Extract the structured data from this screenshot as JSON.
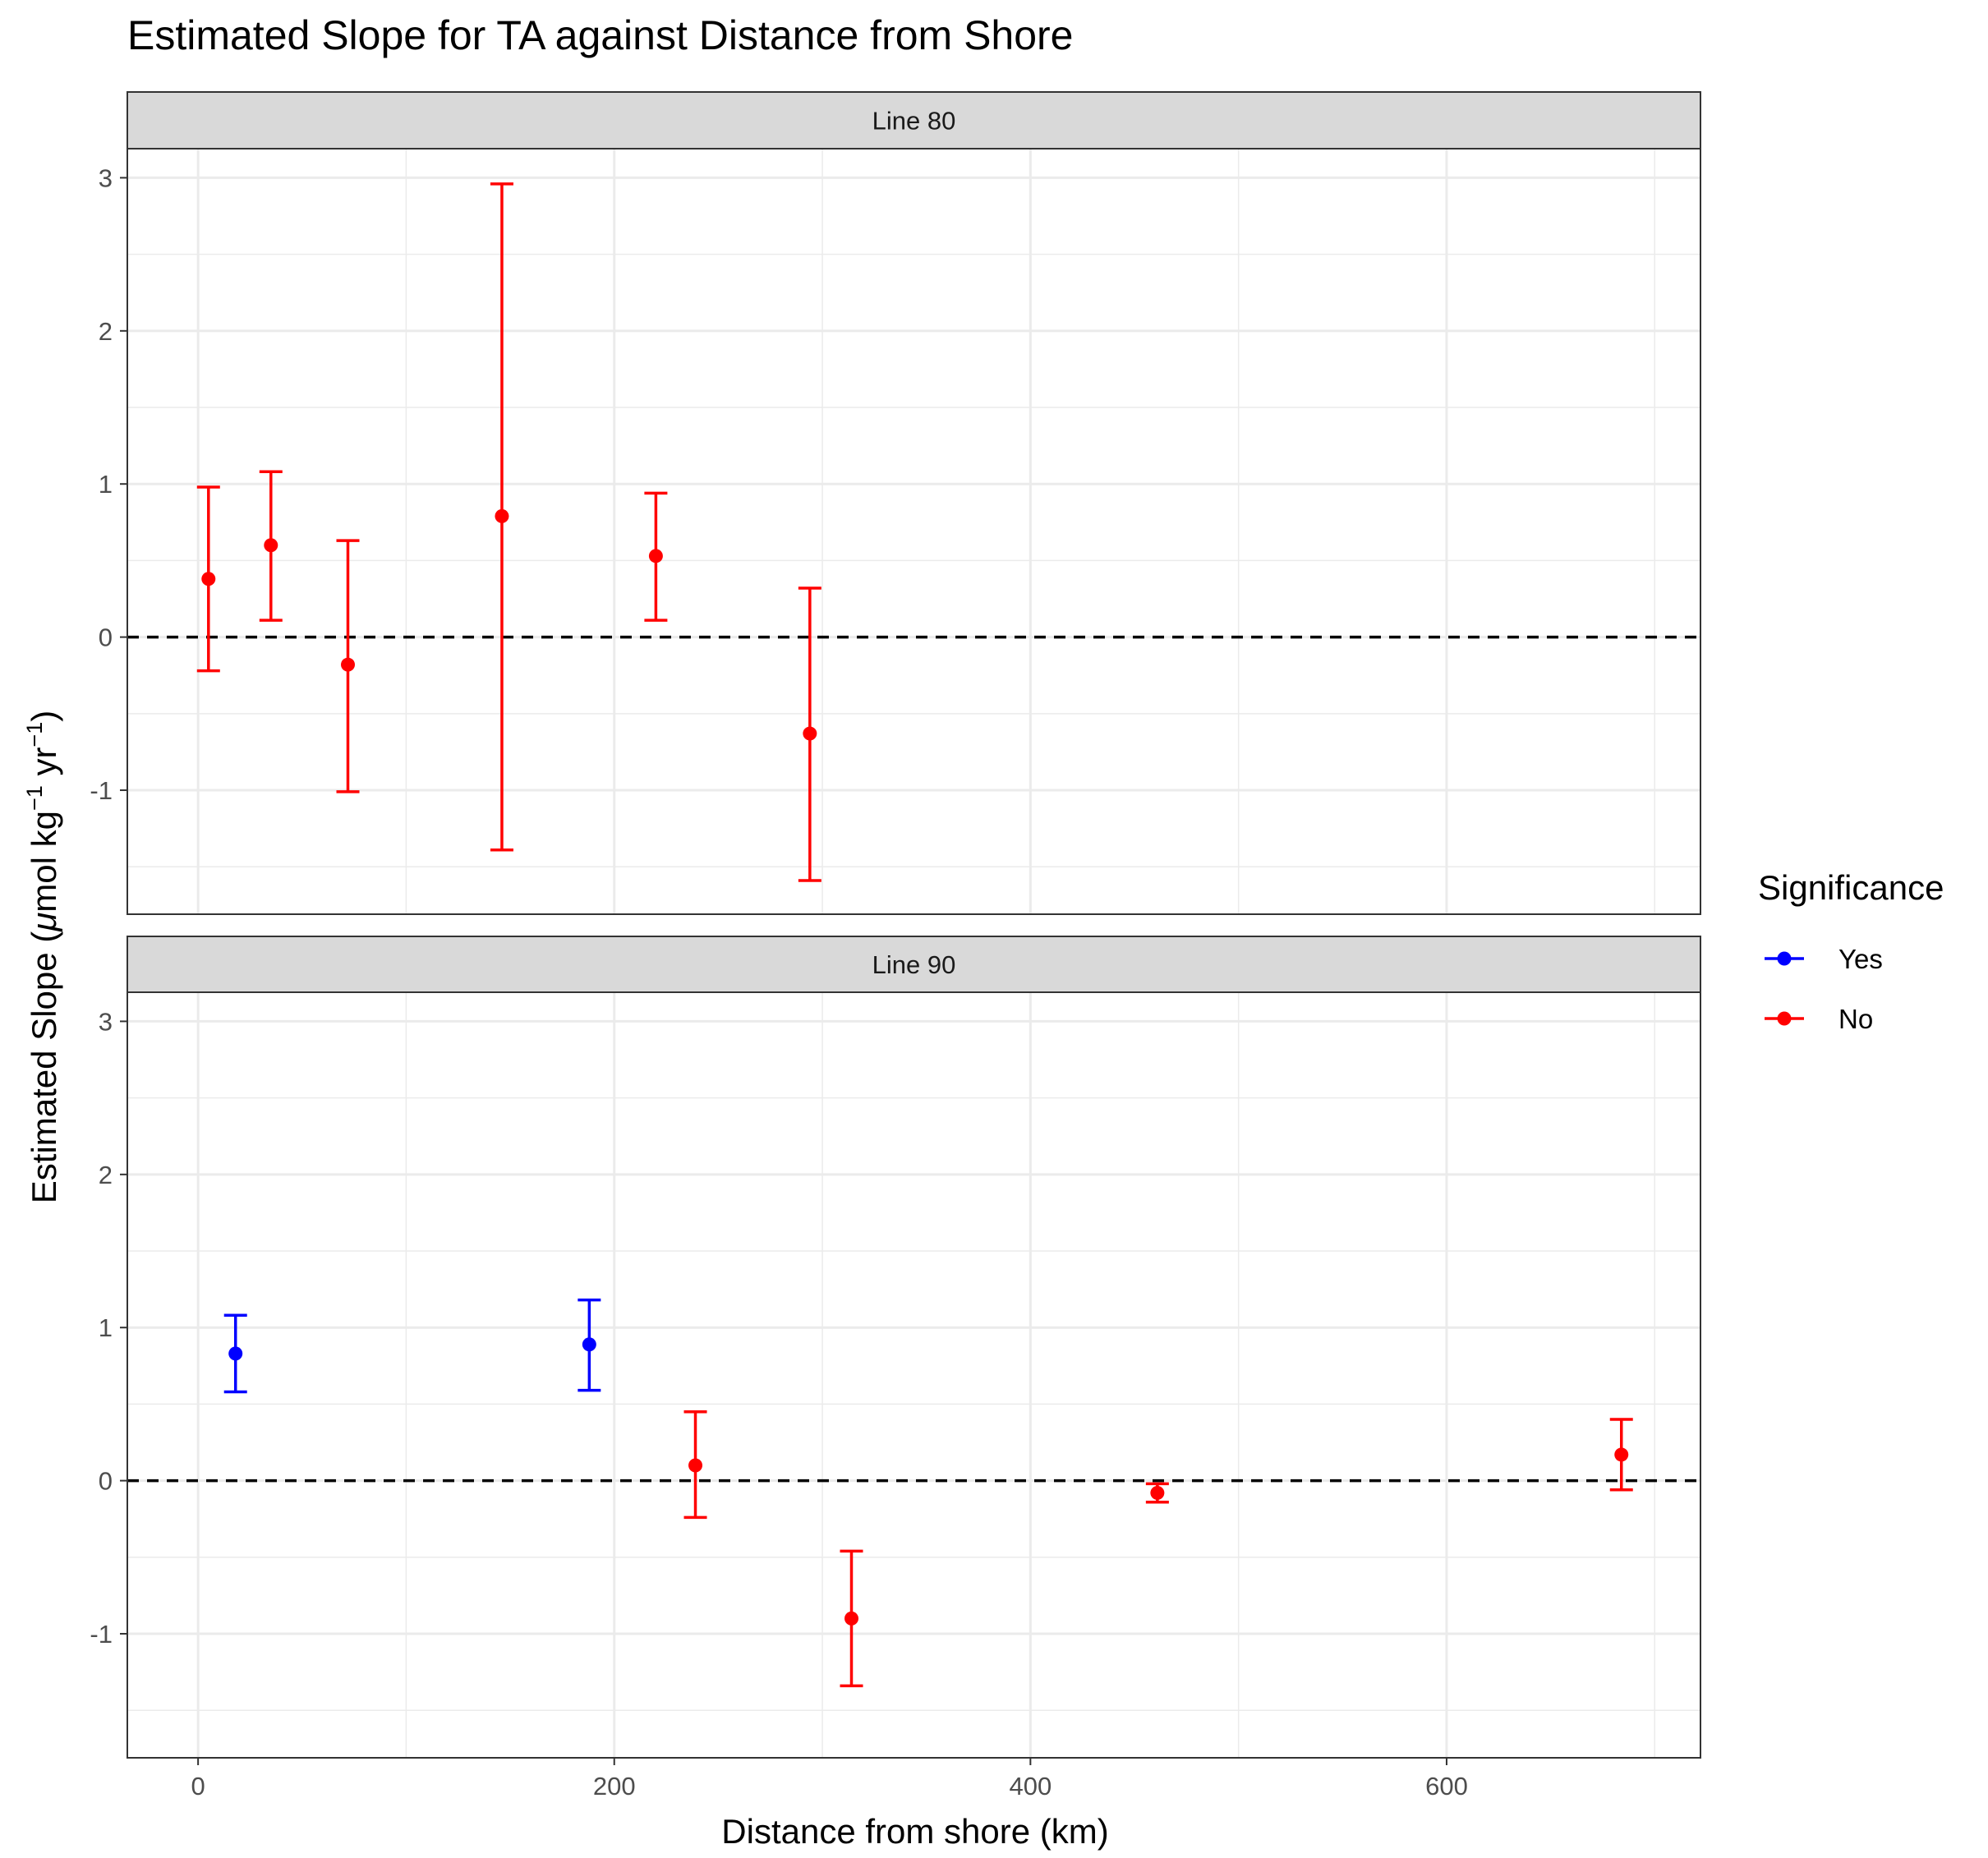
{
  "chart_data": {
    "type": "scatter",
    "title": "Estimated Slope for TA against Distance from Shore",
    "xlabel": "Distance from shore (km)",
    "ylabel": {
      "prefix": "Estimated Slope (",
      "mu": "μ",
      "unit1": "mol kg",
      "sup1": "−1",
      "unit2": " yr",
      "sup2": "−1",
      "suffix": ")"
    },
    "xlim": [
      -34,
      722
    ],
    "ylim": [
      -1.81,
      3.19
    ],
    "x_ticks": [
      0,
      200,
      400,
      600
    ],
    "x_tick_labels": [
      "0",
      "200",
      "400",
      "600"
    ],
    "y_ticks": [
      -1,
      0,
      1,
      2,
      3
    ],
    "y_tick_labels": [
      "-1",
      "0",
      "1",
      "2",
      "3"
    ],
    "grid": true,
    "reference_line": {
      "y": 0,
      "style": "dashed"
    },
    "legend": {
      "title": "Significance",
      "placement": "right",
      "entries": [
        {
          "label": "Yes",
          "color": "#0000ff"
        },
        {
          "label": "No",
          "color": "#ff0000"
        }
      ]
    },
    "facets": [
      {
        "label": "Line 80",
        "points": [
          {
            "x": 5,
            "y": 0.38,
            "lower": -0.22,
            "upper": 0.98,
            "significant": "No"
          },
          {
            "x": 35,
            "y": 0.6,
            "lower": 0.11,
            "upper": 1.08,
            "significant": "No"
          },
          {
            "x": 72,
            "y": -0.18,
            "lower": -1.01,
            "upper": 0.63,
            "significant": "No"
          },
          {
            "x": 146,
            "y": 0.79,
            "lower": -1.39,
            "upper": 2.96,
            "significant": "No"
          },
          {
            "x": 220,
            "y": 0.53,
            "lower": 0.11,
            "upper": 0.94,
            "significant": "No"
          },
          {
            "x": 294,
            "y": -0.63,
            "lower": -1.59,
            "upper": 0.32,
            "significant": "No"
          }
        ]
      },
      {
        "label": "Line 90",
        "points": [
          {
            "x": 18,
            "y": 0.83,
            "lower": 0.58,
            "upper": 1.08,
            "significant": "Yes"
          },
          {
            "x": 188,
            "y": 0.89,
            "lower": 0.59,
            "upper": 1.18,
            "significant": "Yes"
          },
          {
            "x": 239,
            "y": 0.1,
            "lower": -0.24,
            "upper": 0.45,
            "significant": "No"
          },
          {
            "x": 314,
            "y": -0.9,
            "lower": -1.34,
            "upper": -0.46,
            "significant": "No"
          },
          {
            "x": 461,
            "y": -0.08,
            "lower": -0.14,
            "upper": -0.02,
            "significant": "No"
          },
          {
            "x": 684,
            "y": 0.17,
            "lower": -0.06,
            "upper": 0.4,
            "significant": "No"
          }
        ]
      }
    ]
  }
}
